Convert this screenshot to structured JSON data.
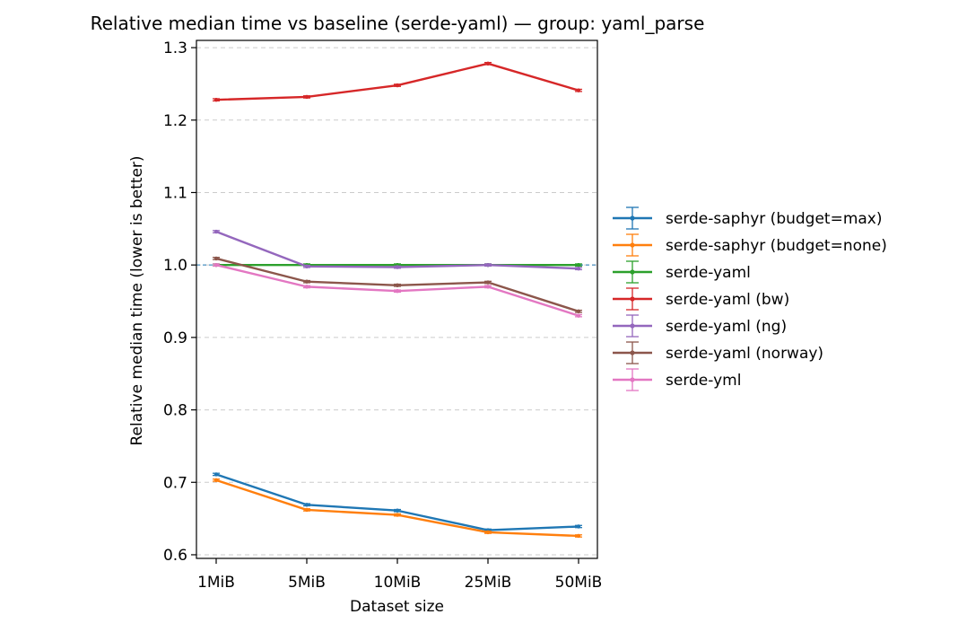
{
  "chart_data": {
    "type": "line",
    "title": "Relative median time vs baseline (serde-yaml) — group: yaml_parse",
    "xlabel": "Dataset size",
    "ylabel": "Relative median time (lower is better)",
    "categories": [
      "1MiB",
      "5MiB",
      "10MiB",
      "25MiB",
      "50MiB"
    ],
    "ylim": [
      0.595,
      1.31
    ],
    "yticks": [
      0.6,
      0.7,
      0.8,
      0.9,
      1.0,
      1.1,
      1.2,
      1.3
    ],
    "ytick_labels": [
      "0.6",
      "0.7",
      "0.8",
      "0.9",
      "1.0",
      "1.1",
      "1.2",
      "1.3"
    ],
    "grid": "y-dashed",
    "baseline": 1.0,
    "legend_position": "right-outside",
    "error_bars": true,
    "series": [
      {
        "name": "serde-saphyr (budget=max)",
        "color": "#1f77b4",
        "values": [
          0.711,
          0.669,
          0.661,
          0.634,
          0.639
        ]
      },
      {
        "name": "serde-saphyr (budget=none)",
        "color": "#ff7f0e",
        "values": [
          0.703,
          0.662,
          0.655,
          0.631,
          0.626
        ]
      },
      {
        "name": "serde-yaml",
        "color": "#2ca02c",
        "values": [
          1.0,
          1.0,
          1.0,
          1.0,
          1.0
        ]
      },
      {
        "name": "serde-yaml (bw)",
        "color": "#d62728",
        "values": [
          1.228,
          1.232,
          1.248,
          1.278,
          1.241
        ]
      },
      {
        "name": "serde-yaml (ng)",
        "color": "#9467bd",
        "values": [
          1.046,
          0.998,
          0.997,
          1.0,
          0.995
        ]
      },
      {
        "name": "serde-yaml (norway)",
        "color": "#8c564b",
        "values": [
          1.009,
          0.977,
          0.972,
          0.976,
          0.936
        ]
      },
      {
        "name": "serde-yml",
        "color": "#e377c2",
        "values": [
          1.0,
          0.97,
          0.964,
          0.97,
          0.93
        ]
      }
    ]
  }
}
